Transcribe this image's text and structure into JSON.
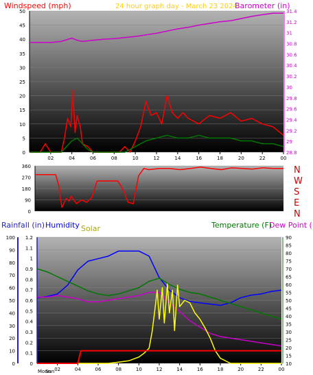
{
  "header": {
    "left_title": "Windspeed (mph)",
    "center_title": "24 hour graph day - March 23 2024",
    "right_title": "Barometer (in)"
  },
  "colors": {
    "windspeed": "#ff0000",
    "barometer": "#cc00cc",
    "rainfall": "#1f1fcc",
    "humidity": "#0000ff",
    "solar": "#aaaa00",
    "temperature": "#007700",
    "dewpoint": "#cc00cc",
    "header_title": "#ffcc00"
  },
  "direction_labels": [
    "N",
    "W",
    "S",
    "E",
    "N"
  ],
  "bottom_labels": {
    "rainfall": "Rainfall (in)",
    "humidity": "Humidity",
    "solar": "Solar",
    "temperature": "Temperature (F)",
    "dewpoint": "Dew Point (F)",
    "moon": "Moon",
    "sun": "Sun"
  },
  "chart_data": [
    {
      "type": "line",
      "x_ticks": [
        "02",
        "04",
        "06",
        "08",
        "10",
        "12",
        "14",
        "16",
        "18",
        "20",
        "22",
        "00"
      ],
      "left_axis": {
        "label": "Windspeed (mph)",
        "ylim": [
          0,
          50
        ],
        "ticks": [
          0,
          5,
          10,
          15,
          20,
          25,
          30,
          35,
          40,
          45,
          50
        ]
      },
      "right_axis": {
        "label": "Barometer (in)",
        "ylim": [
          28.8,
          31.4
        ],
        "ticks": [
          28.8,
          29,
          29.2,
          29.4,
          29.6,
          29.8,
          30,
          30.2,
          30.4,
          30.6,
          30.8,
          31,
          31.2,
          31.4
        ]
      },
      "series": [
        {
          "name": "Barometer (in)",
          "axis": "right",
          "x": [
            0,
            1,
            2,
            3,
            3.5,
            4,
            4.5,
            5,
            6,
            7,
            8,
            9,
            10,
            11,
            12,
            13,
            14,
            15,
            16,
            17,
            18,
            19,
            20,
            21,
            22,
            23,
            24
          ],
          "values": [
            30.82,
            30.82,
            30.82,
            30.84,
            30.87,
            30.9,
            30.86,
            30.84,
            30.86,
            30.88,
            30.89,
            30.91,
            30.93,
            30.96,
            30.99,
            31.03,
            31.07,
            31.1,
            31.14,
            31.17,
            31.2,
            31.22,
            31.26,
            31.3,
            31.33,
            31.36,
            31.36
          ]
        },
        {
          "x": [
            0,
            0.5,
            1,
            1.5,
            2,
            2.5,
            3,
            3.3,
            3.6,
            3.9,
            4.1,
            4.3,
            4.5,
            4.8,
            5,
            5.5,
            6,
            7,
            8,
            8.5,
            9,
            9.5,
            10,
            10.5,
            11,
            11.5,
            12,
            12.5,
            13,
            13.5,
            14,
            14.5,
            15,
            16,
            17,
            18,
            19,
            20,
            21,
            22,
            23,
            24
          ],
          "values": [
            0,
            0,
            0,
            3,
            0,
            0,
            0,
            5,
            12,
            9,
            22,
            7,
            13,
            9,
            3,
            2,
            0,
            0,
            0,
            0,
            2,
            0,
            4,
            9,
            18,
            13,
            14,
            10,
            20,
            14,
            12,
            14,
            12,
            10,
            13,
            12,
            14,
            11,
            12,
            10,
            9,
            6
          ]
        },
        {
          "x": [
            0,
            3,
            3.5,
            4,
            4.5,
            5,
            5.5,
            6,
            9,
            10,
            11,
            12,
            13,
            14,
            15,
            16,
            17,
            18,
            19,
            20,
            21,
            22,
            23,
            24
          ],
          "values": [
            0,
            0,
            2,
            4,
            5,
            3,
            1,
            0,
            0,
            2,
            4,
            5,
            6,
            5,
            5,
            6,
            5,
            5,
            5,
            4,
            4,
            3,
            3,
            2
          ]
        }
      ]
    },
    {
      "type": "line",
      "x_ticks": [
        "02",
        "04",
        "06",
        "08",
        "10",
        "12",
        "14",
        "16",
        "18",
        "20",
        "22",
        "00"
      ],
      "left_axis": {
        "ylim": [
          0,
          360
        ],
        "ticks": [
          0,
          90,
          180,
          270,
          360
        ]
      },
      "series": [
        {
          "x": [
            0,
            2,
            2.3,
            2.6,
            3,
            3.3,
            3.5,
            4,
            4.5,
            5,
            5.5,
            6,
            6.5,
            7,
            7.5,
            8,
            8.5,
            9,
            9.5,
            10,
            10.5,
            11,
            12,
            13,
            14,
            15,
            16,
            17,
            18,
            19,
            20,
            21,
            22,
            23,
            24
          ],
          "values": [
            290,
            290,
            200,
            30,
            100,
            80,
            120,
            60,
            90,
            70,
            110,
            240,
            240,
            240,
            240,
            240,
            170,
            70,
            60,
            280,
            340,
            330,
            340,
            340,
            330,
            340,
            350,
            340,
            330,
            345,
            340,
            335,
            345,
            340,
            340
          ]
        }
      ]
    },
    {
      "type": "line",
      "x_ticks": [
        "02",
        "04",
        "06",
        "08",
        "10",
        "12",
        "14",
        "16",
        "18",
        "20",
        "22",
        "00"
      ],
      "axes": [
        {
          "label": "Rainfall (in)",
          "ylim": [
            0,
            1.2
          ],
          "ticks": [
            0,
            0.1,
            0.2,
            0.3,
            0.4,
            0.5,
            0.6,
            0.7,
            0.8,
            0.9,
            1,
            1.1,
            1.2
          ]
        },
        {
          "label": "Humidity",
          "ylim": [
            0,
            100
          ],
          "ticks": [
            0,
            10,
            20,
            30,
            40,
            50,
            60,
            70,
            80,
            90,
            100
          ]
        },
        {
          "label": "Temperature (F)",
          "ylim": [
            10,
            90
          ],
          "ticks": [
            10,
            15,
            20,
            25,
            30,
            35,
            40,
            45,
            50,
            55,
            60,
            65,
            70,
            75,
            80,
            85,
            90
          ]
        }
      ],
      "series": [
        {
          "name": "Humidity",
          "x": [
            0,
            1,
            2,
            3,
            4,
            5,
            6,
            7,
            8,
            9,
            10,
            11,
            12,
            13,
            14,
            15,
            16,
            17,
            18,
            19,
            20,
            21,
            22,
            23,
            24
          ],
          "values": [
            52,
            53,
            55,
            62,
            74,
            81,
            83,
            85,
            89,
            89,
            89,
            85,
            68,
            58,
            52,
            49,
            48,
            47,
            46,
            48,
            52,
            54,
            55,
            57,
            58
          ]
        },
        {
          "name": "Temperature (F)",
          "x": [
            0,
            1,
            2,
            3,
            4,
            5,
            6,
            7,
            8,
            9,
            10,
            11,
            12,
            13,
            14,
            15,
            16,
            17,
            18,
            19,
            20,
            21,
            22,
            23,
            24
          ],
          "values": [
            70,
            68,
            65,
            62,
            59,
            56,
            54,
            53,
            54,
            56,
            58,
            62,
            64,
            60,
            57,
            55,
            54,
            52,
            50,
            48,
            46,
            44,
            42,
            40,
            38
          ]
        },
        {
          "name": "Dew Point (F)",
          "x": [
            0,
            1,
            2,
            3,
            4,
            5,
            6,
            7,
            8,
            9,
            10,
            11,
            12,
            13,
            14,
            15,
            16,
            17,
            18,
            19,
            20,
            21,
            22,
            23,
            24
          ],
          "values": [
            52,
            52,
            53,
            52,
            51,
            49,
            49,
            50,
            51,
            52,
            53,
            55,
            55,
            48,
            43,
            37,
            33,
            29,
            27,
            26,
            25,
            24,
            23,
            22,
            21
          ]
        },
        {
          "name": "Solar",
          "x": [
            0,
            6,
            7,
            8,
            9,
            10,
            10.5,
            11,
            11.3,
            11.5,
            11.8,
            12,
            12.3,
            12.5,
            12.8,
            13,
            13.3,
            13.5,
            13.8,
            14,
            14.5,
            15,
            15.5,
            16,
            16.5,
            17,
            17.5,
            18,
            19,
            24
          ],
          "values": [
            0,
            0,
            0,
            1,
            2,
            5,
            8,
            12,
            25,
            38,
            58,
            35,
            60,
            32,
            63,
            40,
            58,
            26,
            62,
            45,
            50,
            48,
            40,
            35,
            28,
            20,
            10,
            4,
            0,
            0
          ]
        },
        {
          "name": "Rainfall (in)",
          "x": [
            0,
            4,
            4.3,
            24
          ],
          "values": [
            0,
            0,
            0.12,
            0.12
          ]
        }
      ]
    }
  ]
}
